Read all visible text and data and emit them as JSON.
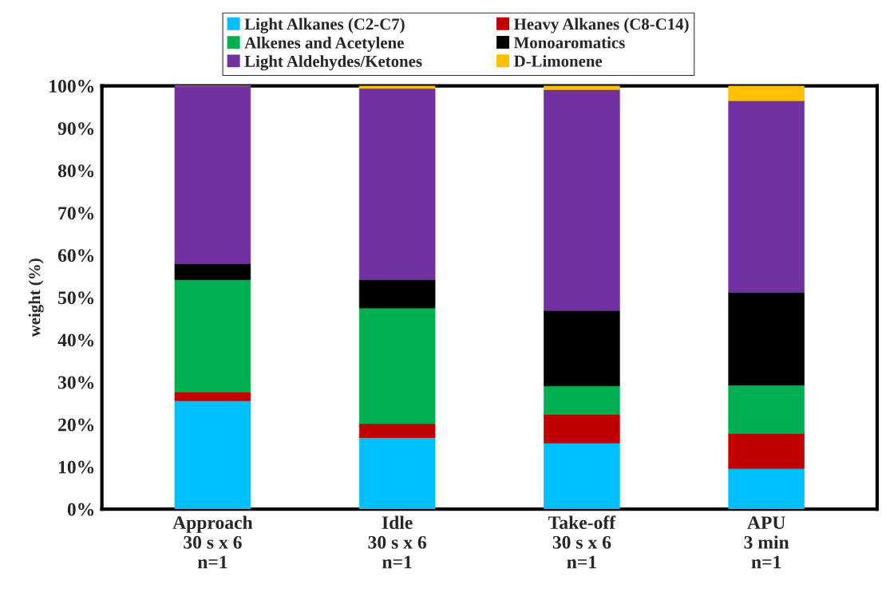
{
  "chart_data": {
    "type": "bar",
    "stacked": true,
    "ylabel": "weight (%)",
    "categories": [
      "Approach\n30 s x 6\nn=1",
      "Idle\n30 s x 6\nn=1",
      "Take-off\n30 s x 6\nn=1",
      "APU\n3 min\nn=1"
    ],
    "series": [
      {
        "name": "Light Alkanes (C2-C7)",
        "color": "#00bfff",
        "values": [
          25.6,
          16.9,
          15.6,
          9.6
        ]
      },
      {
        "name": "Heavy Alkanes (C8-C14)",
        "color": "#c00000",
        "values": [
          2.1,
          3.3,
          6.8,
          8.3
        ]
      },
      {
        "name": "Alkenes and Acetylene",
        "color": "#00b050",
        "values": [
          26.5,
          27.3,
          6.7,
          11.4
        ]
      },
      {
        "name": "Monoaromatics",
        "color": "#000000",
        "values": [
          3.8,
          6.7,
          17.8,
          21.9
        ]
      },
      {
        "name": "Light Aldehydes/Ketones",
        "color": "#7030a0",
        "values": [
          42.0,
          45.2,
          52.2,
          45.3
        ]
      },
      {
        "name": "D-Limonene",
        "color": "#ffc000",
        "values": [
          0,
          0.6,
          0.9,
          3.5
        ]
      }
    ],
    "ylim": [
      0,
      100
    ],
    "yticks": [
      {
        "value": 0,
        "label": "0%"
      },
      {
        "value": 10,
        "label": "10%"
      },
      {
        "value": 20,
        "label": "20%"
      },
      {
        "value": 30,
        "label": "30%"
      },
      {
        "value": 40,
        "label": "40%"
      },
      {
        "value": 50,
        "label": "50%"
      },
      {
        "value": 60,
        "label": "60%"
      },
      {
        "value": 70,
        "label": "70%"
      },
      {
        "value": 80,
        "label": "80%"
      },
      {
        "value": 90,
        "label": "90%"
      },
      {
        "value": 100,
        "label": "100%"
      }
    ],
    "grid": false,
    "legend": "top"
  }
}
